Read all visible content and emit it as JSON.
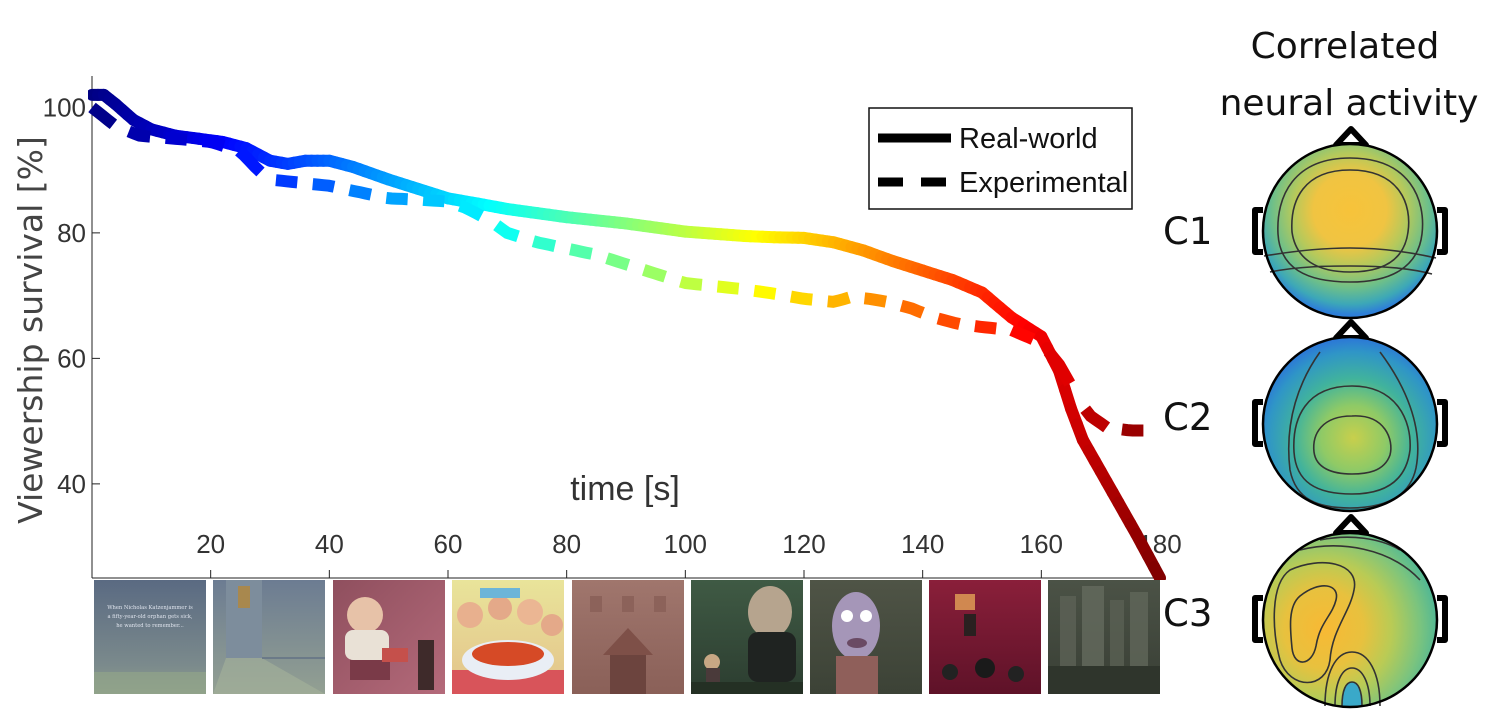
{
  "chart_data": {
    "type": "line",
    "xlabel": "time [s]",
    "ylabel": "Viewership survival [%]",
    "xlim": [
      0,
      180
    ],
    "ylim": [
      25,
      105
    ],
    "xticks": [
      20,
      40,
      60,
      80,
      100,
      120,
      140,
      160,
      180
    ],
    "yticks": [
      40,
      60,
      80,
      100
    ],
    "color_encoding": "jet colormap along time",
    "legend": {
      "position": "top-right"
    },
    "series": [
      {
        "name": "Real-world",
        "style": "solid",
        "points": [
          [
            0,
            102
          ],
          [
            2,
            102
          ],
          [
            4,
            100.5
          ],
          [
            7,
            98
          ],
          [
            10,
            96.5
          ],
          [
            14,
            95.5
          ],
          [
            18,
            95
          ],
          [
            22,
            94.5
          ],
          [
            26,
            93.5
          ],
          [
            28,
            92.5
          ],
          [
            30,
            91.5
          ],
          [
            33,
            91
          ],
          [
            36,
            91.5
          ],
          [
            40,
            91.5
          ],
          [
            44,
            90.5
          ],
          [
            50,
            88.5
          ],
          [
            55,
            87
          ],
          [
            60,
            85.5
          ],
          [
            66,
            84.5
          ],
          [
            70,
            83.8
          ],
          [
            80,
            82.5
          ],
          [
            90,
            81.5
          ],
          [
            100,
            80.2
          ],
          [
            110,
            79.5
          ],
          [
            115,
            79.3
          ],
          [
            120,
            79.2
          ],
          [
            125,
            78.5
          ],
          [
            130,
            77.2
          ],
          [
            135,
            75.5
          ],
          [
            140,
            74
          ],
          [
            145,
            72.5
          ],
          [
            150,
            70.5
          ],
          [
            155,
            66.5
          ],
          [
            160,
            63.5
          ],
          [
            163,
            58
          ],
          [
            165,
            52
          ],
          [
            167,
            47
          ],
          [
            170,
            42
          ],
          [
            173,
            37
          ],
          [
            176,
            32
          ],
          [
            180,
            25
          ]
        ]
      },
      {
        "name": "Experimental",
        "style": "dashed",
        "points": [
          [
            0,
            100
          ],
          [
            4,
            97
          ],
          [
            8,
            95.5
          ],
          [
            14,
            95
          ],
          [
            20,
            94.5
          ],
          [
            25,
            93
          ],
          [
            28,
            90
          ],
          [
            30,
            88.5
          ],
          [
            35,
            88
          ],
          [
            40,
            87.5
          ],
          [
            45,
            86.5
          ],
          [
            50,
            85.5
          ],
          [
            55,
            85.3
          ],
          [
            60,
            85
          ],
          [
            63,
            84
          ],
          [
            67,
            82
          ],
          [
            70,
            80
          ],
          [
            75,
            78.5
          ],
          [
            80,
            77.5
          ],
          [
            85,
            76.5
          ],
          [
            90,
            75
          ],
          [
            95,
            73.5
          ],
          [
            100,
            72
          ],
          [
            105,
            71.5
          ],
          [
            110,
            71
          ],
          [
            115,
            70.3
          ],
          [
            120,
            69.5
          ],
          [
            125,
            69
          ],
          [
            128,
            69.8
          ],
          [
            131,
            69.5
          ],
          [
            134,
            69
          ],
          [
            138,
            68
          ],
          [
            142,
            66.5
          ],
          [
            146,
            65.5
          ],
          [
            150,
            65
          ],
          [
            155,
            64.5
          ],
          [
            160,
            62.5
          ],
          [
            163,
            59
          ],
          [
            166,
            54
          ],
          [
            168,
            51
          ],
          [
            171,
            49
          ],
          [
            175,
            48.5
          ],
          [
            178,
            48.5
          ]
        ]
      }
    ]
  },
  "side_panel": {
    "title_line1": "Correlated",
    "title_line2": "neural activity",
    "components": [
      {
        "label": "C1",
        "peak_region": "center-top",
        "background": "green",
        "peak_color": "yellow-orange"
      },
      {
        "label": "C2",
        "peak_region": "center",
        "background": "blue",
        "peak_color": "green-yellow"
      },
      {
        "label": "C3",
        "peak_region": "left",
        "background": "yellow-green",
        "peak_color": "orange"
      }
    ]
  },
  "frames": [
    {
      "name": "frame-1",
      "caption_lines": [
        "When Nicholas Katzenjammer is",
        "a fifty-year-old orphan gets sick,",
        "he wanted to remember..."
      ]
    },
    {
      "name": "frame-2"
    },
    {
      "name": "frame-3"
    },
    {
      "name": "frame-4"
    },
    {
      "name": "frame-5"
    },
    {
      "name": "frame-6"
    },
    {
      "name": "frame-7"
    },
    {
      "name": "frame-8"
    },
    {
      "name": "frame-9"
    }
  ]
}
